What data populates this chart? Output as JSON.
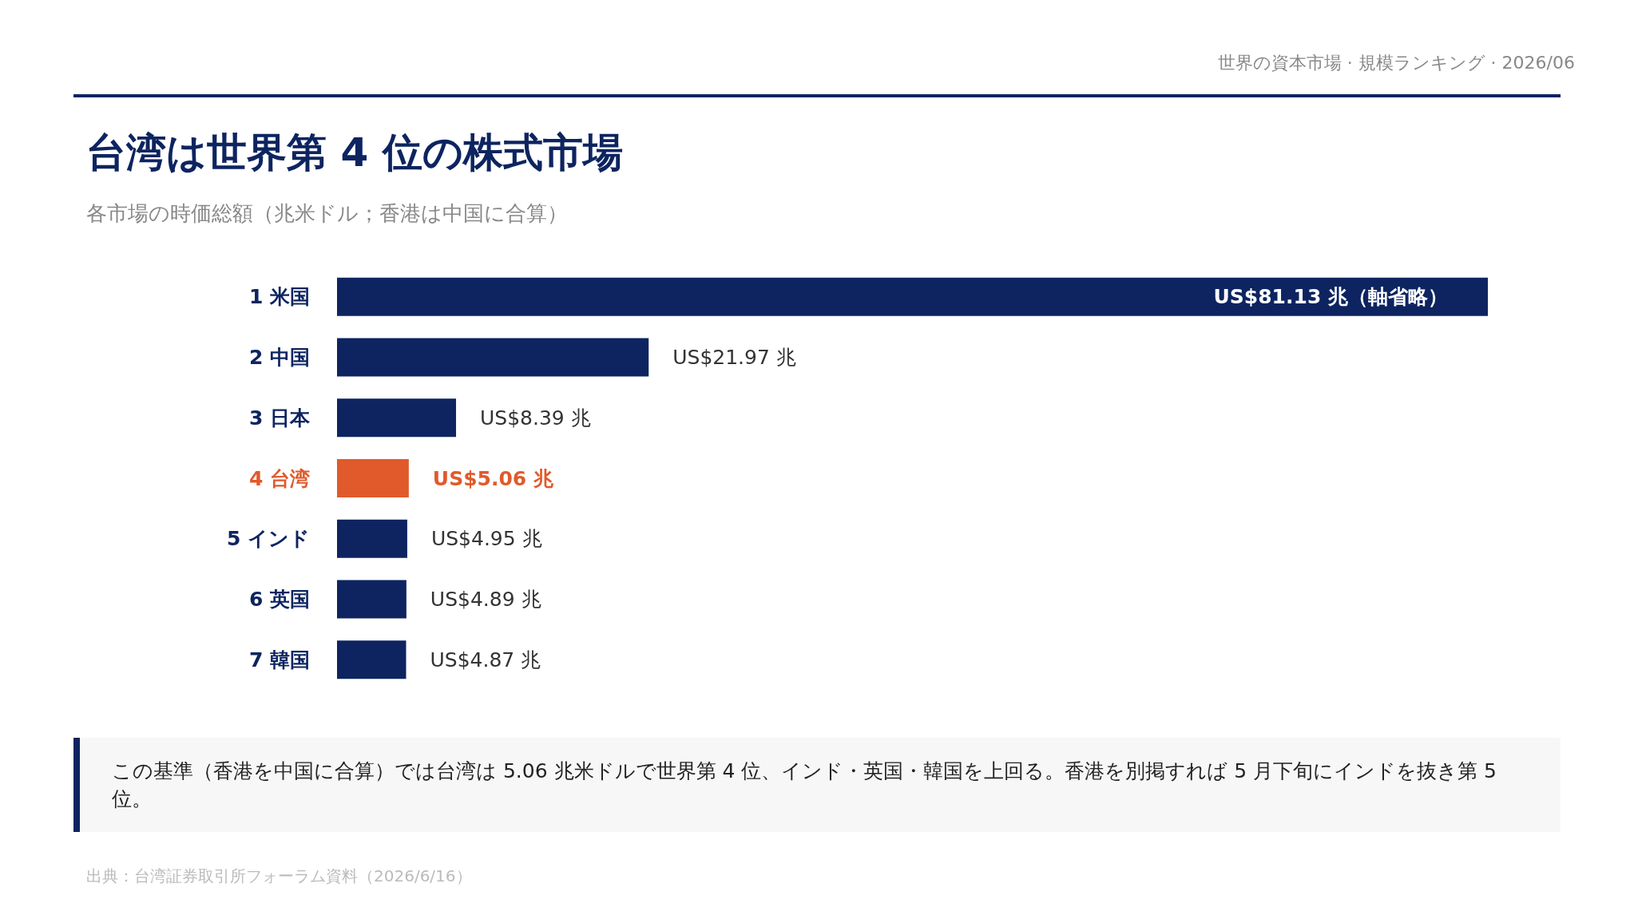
{
  "chart_data": {
    "type": "bar",
    "orientation": "horizontal",
    "title": "台湾は世界第 4 位の株式市場",
    "subtitle": "各市場の時価総額（兆米ドル；香港は中国に合算）",
    "categories": [
      "1 米国",
      "2 中国",
      "3 日本",
      "4 台湾",
      "5 インド",
      "6 英国",
      "7 韓国"
    ],
    "values": [
      81.13,
      21.97,
      8.39,
      5.06,
      4.95,
      4.89,
      4.87
    ],
    "colors": [
      "#0d2460",
      "#0d2460",
      "#0d2460",
      "#e05a2b",
      "#0d2460",
      "#0d2460",
      "#0d2460"
    ],
    "value_labels": [
      "US$81.13 兆（軸省略）",
      "US$21.97 兆",
      "US$8.39 兆",
      "US$5.06 兆",
      "US$4.95 兆",
      "US$4.89 兆",
      "US$4.87 兆"
    ],
    "annotations": [
      "世界の資本市場 · 規模ランキング · 2026/06",
      "この基準（香港を中国に合算）では台湾は 5.06 兆米ドルで世界第 4 位、インド・英国・韓国を上回る。香港を別掲すれば 5 月下旬にインドを抜き第 5 位。",
      "出典：台湾証券取引所フォーラム資料（2026/6/16）"
    ],
    "grid": false
  }
}
